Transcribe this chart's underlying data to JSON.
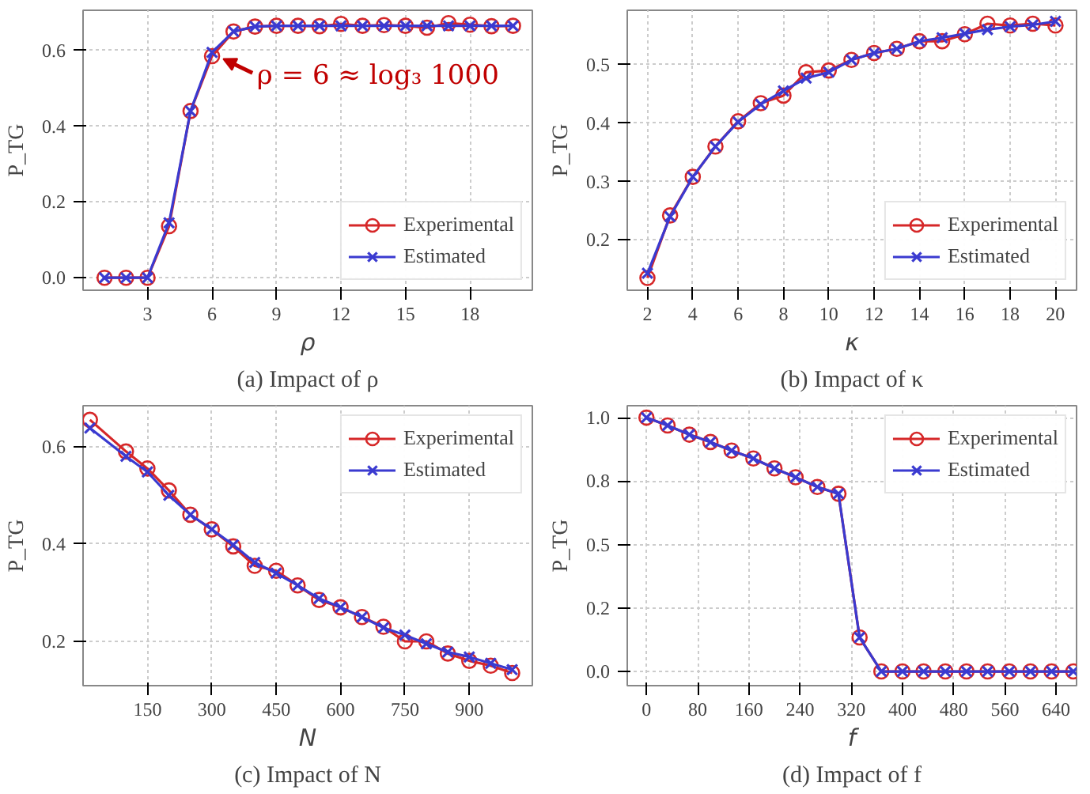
{
  "chart_data": [
    {
      "type": "line",
      "x": [
        1,
        2,
        3,
        4,
        5,
        6,
        7,
        8,
        9,
        10,
        11,
        12,
        13,
        14,
        15,
        16,
        17,
        18,
        19,
        20
      ],
      "xlabel": "ρ",
      "ylabel": "P_TG",
      "xlim": [
        0.0,
        20.9
      ],
      "ylim": [
        -0.033,
        0.706
      ],
      "xticks": [
        3,
        6,
        9,
        12,
        15,
        18
      ],
      "yticks": [
        {
          "value": 0,
          "label": "0.0"
        },
        0.2,
        0.4,
        0.6
      ],
      "grid": true,
      "legend": "bottom right",
      "line_style": "solid",
      "series": [
        {
          "name": "Experimental",
          "color": "#d62728",
          "marker": "circle",
          "values": [
            0,
            0,
            0,
            0.136,
            0.44,
            0.585,
            0.65,
            0.663,
            0.665,
            0.665,
            0.664,
            0.67,
            0.665,
            0.667,
            0.665,
            0.66,
            0.672,
            0.668,
            0.664,
            0.665
          ]
        },
        {
          "name": "Estimated",
          "color": "#3a3ad0",
          "marker": "cross",
          "values": [
            0,
            0,
            0,
            0.145,
            0.44,
            0.595,
            0.65,
            0.663,
            0.665,
            0.665,
            0.665,
            0.665,
            0.665,
            0.665,
            0.665,
            0.665,
            0.665,
            0.665,
            0.665,
            0.665
          ]
        }
      ],
      "annotations": [
        "(a) Impact of ρ",
        {
          "text": "ρ = 6 ≈ log₃ 1000",
          "x": 6,
          "y": 0.585
        }
      ]
    },
    {
      "type": "line",
      "x": [
        2,
        3,
        4,
        5,
        6,
        7,
        8,
        9,
        10,
        11,
        12,
        13,
        14,
        15,
        16,
        17,
        18,
        19,
        20
      ],
      "xlabel": "κ",
      "ylabel": "P_TG",
      "xlim": [
        1.11,
        20.93
      ],
      "ylim": [
        0.114,
        0.593
      ],
      "xticks": [
        2,
        4,
        6,
        8,
        10,
        12,
        14,
        16,
        18,
        20
      ],
      "yticks": [
        0.2,
        0.3,
        0.4,
        0.5
      ],
      "grid": true,
      "legend": "bottom right",
      "line_style": "solid",
      "series": [
        {
          "name": "Experimental",
          "color": "#d62728",
          "marker": "circle",
          "values": [
            0.135,
            0.242,
            0.308,
            0.36,
            0.403,
            0.434,
            0.447,
            0.487,
            0.49,
            0.508,
            0.52,
            0.527,
            0.54,
            0.54,
            0.552,
            0.57,
            0.567,
            0.57,
            0.567
          ]
        },
        {
          "name": "Estimated",
          "color": "#3a3ad0",
          "marker": "cross",
          "values": [
            0.143,
            0.24,
            0.308,
            0.36,
            0.402,
            0.432,
            0.455,
            0.477,
            0.487,
            0.508,
            0.52,
            0.527,
            0.54,
            0.546,
            0.553,
            0.56,
            0.565,
            0.568,
            0.574
          ]
        }
      ],
      "annotations": [
        "(b) Impact of κ"
      ]
    },
    {
      "type": "line",
      "x": [
        16,
        100,
        150,
        200,
        250,
        300,
        350,
        400,
        450,
        500,
        550,
        600,
        650,
        700,
        750,
        800,
        850,
        900,
        950,
        1000
      ],
      "xlabel": "N",
      "ylabel": "P_TG",
      "xlim": [
        0,
        1047
      ],
      "ylim": [
        0.109,
        0.684
      ],
      "xticks": [
        150,
        300,
        450,
        600,
        750,
        900
      ],
      "yticks": [
        0.2,
        0.4,
        0.6
      ],
      "grid": true,
      "legend": "top right",
      "line_style": "solid",
      "series": [
        {
          "name": "Experimental",
          "color": "#d62728",
          "marker": "circle",
          "values": [
            0.655,
            0.59,
            0.555,
            0.51,
            0.46,
            0.43,
            0.395,
            0.355,
            0.345,
            0.315,
            0.285,
            0.27,
            0.25,
            0.23,
            0.2,
            0.2,
            0.175,
            0.16,
            0.15,
            0.135
          ]
        },
        {
          "name": "Estimated",
          "color": "#3a3ad0",
          "marker": "cross",
          "values": [
            0.638,
            0.58,
            0.548,
            0.5,
            0.46,
            0.43,
            0.398,
            0.362,
            0.34,
            0.315,
            0.288,
            0.27,
            0.25,
            0.228,
            0.213,
            0.195,
            0.178,
            0.168,
            0.155,
            0.142
          ]
        }
      ],
      "annotations": [
        "(c) Impact of N"
      ]
    },
    {
      "type": "line",
      "x": [
        0,
        33,
        67,
        100,
        133,
        167,
        200,
        233,
        267,
        300,
        333,
        367,
        400,
        433,
        467,
        500,
        533,
        567,
        600,
        633,
        667
      ],
      "xlabel": "f",
      "ylabel": "P_TG",
      "xlim": [
        -30,
        672
      ],
      "ylim": [
        -0.056,
        1.047
      ],
      "xticks": [
        0,
        80,
        160,
        240,
        320,
        400,
        480,
        560,
        640
      ],
      "yticks": [
        {
          "value": 0,
          "label": "0.0"
        },
        {
          "value": 0.25,
          "label": "0.2"
        },
        {
          "value": 0.5,
          "label": "0.5"
        },
        {
          "value": 0.75,
          "label": "0.8"
        },
        {
          "value": 1.0,
          "label": "1.0"
        }
      ],
      "grid": true,
      "legend": "top right",
      "line_style": "solid",
      "series": [
        {
          "name": "Experimental",
          "color": "#d62728",
          "marker": "circle",
          "values": [
            1.0,
            0.969,
            0.933,
            0.904,
            0.87,
            0.839,
            0.8,
            0.765,
            0.727,
            0.7,
            0.134,
            0,
            0,
            0,
            0,
            0,
            0,
            0,
            0,
            0,
            0
          ]
        },
        {
          "name": "Estimated",
          "color": "#3a3ad0",
          "marker": "cross",
          "values": [
            1.0,
            0.969,
            0.933,
            0.904,
            0.87,
            0.839,
            0.8,
            0.765,
            0.727,
            0.7,
            0.134,
            0,
            0,
            0,
            0,
            0,
            0,
            0,
            0,
            0,
            0
          ]
        }
      ],
      "annotations": [
        "(d) Impact of f"
      ]
    }
  ]
}
